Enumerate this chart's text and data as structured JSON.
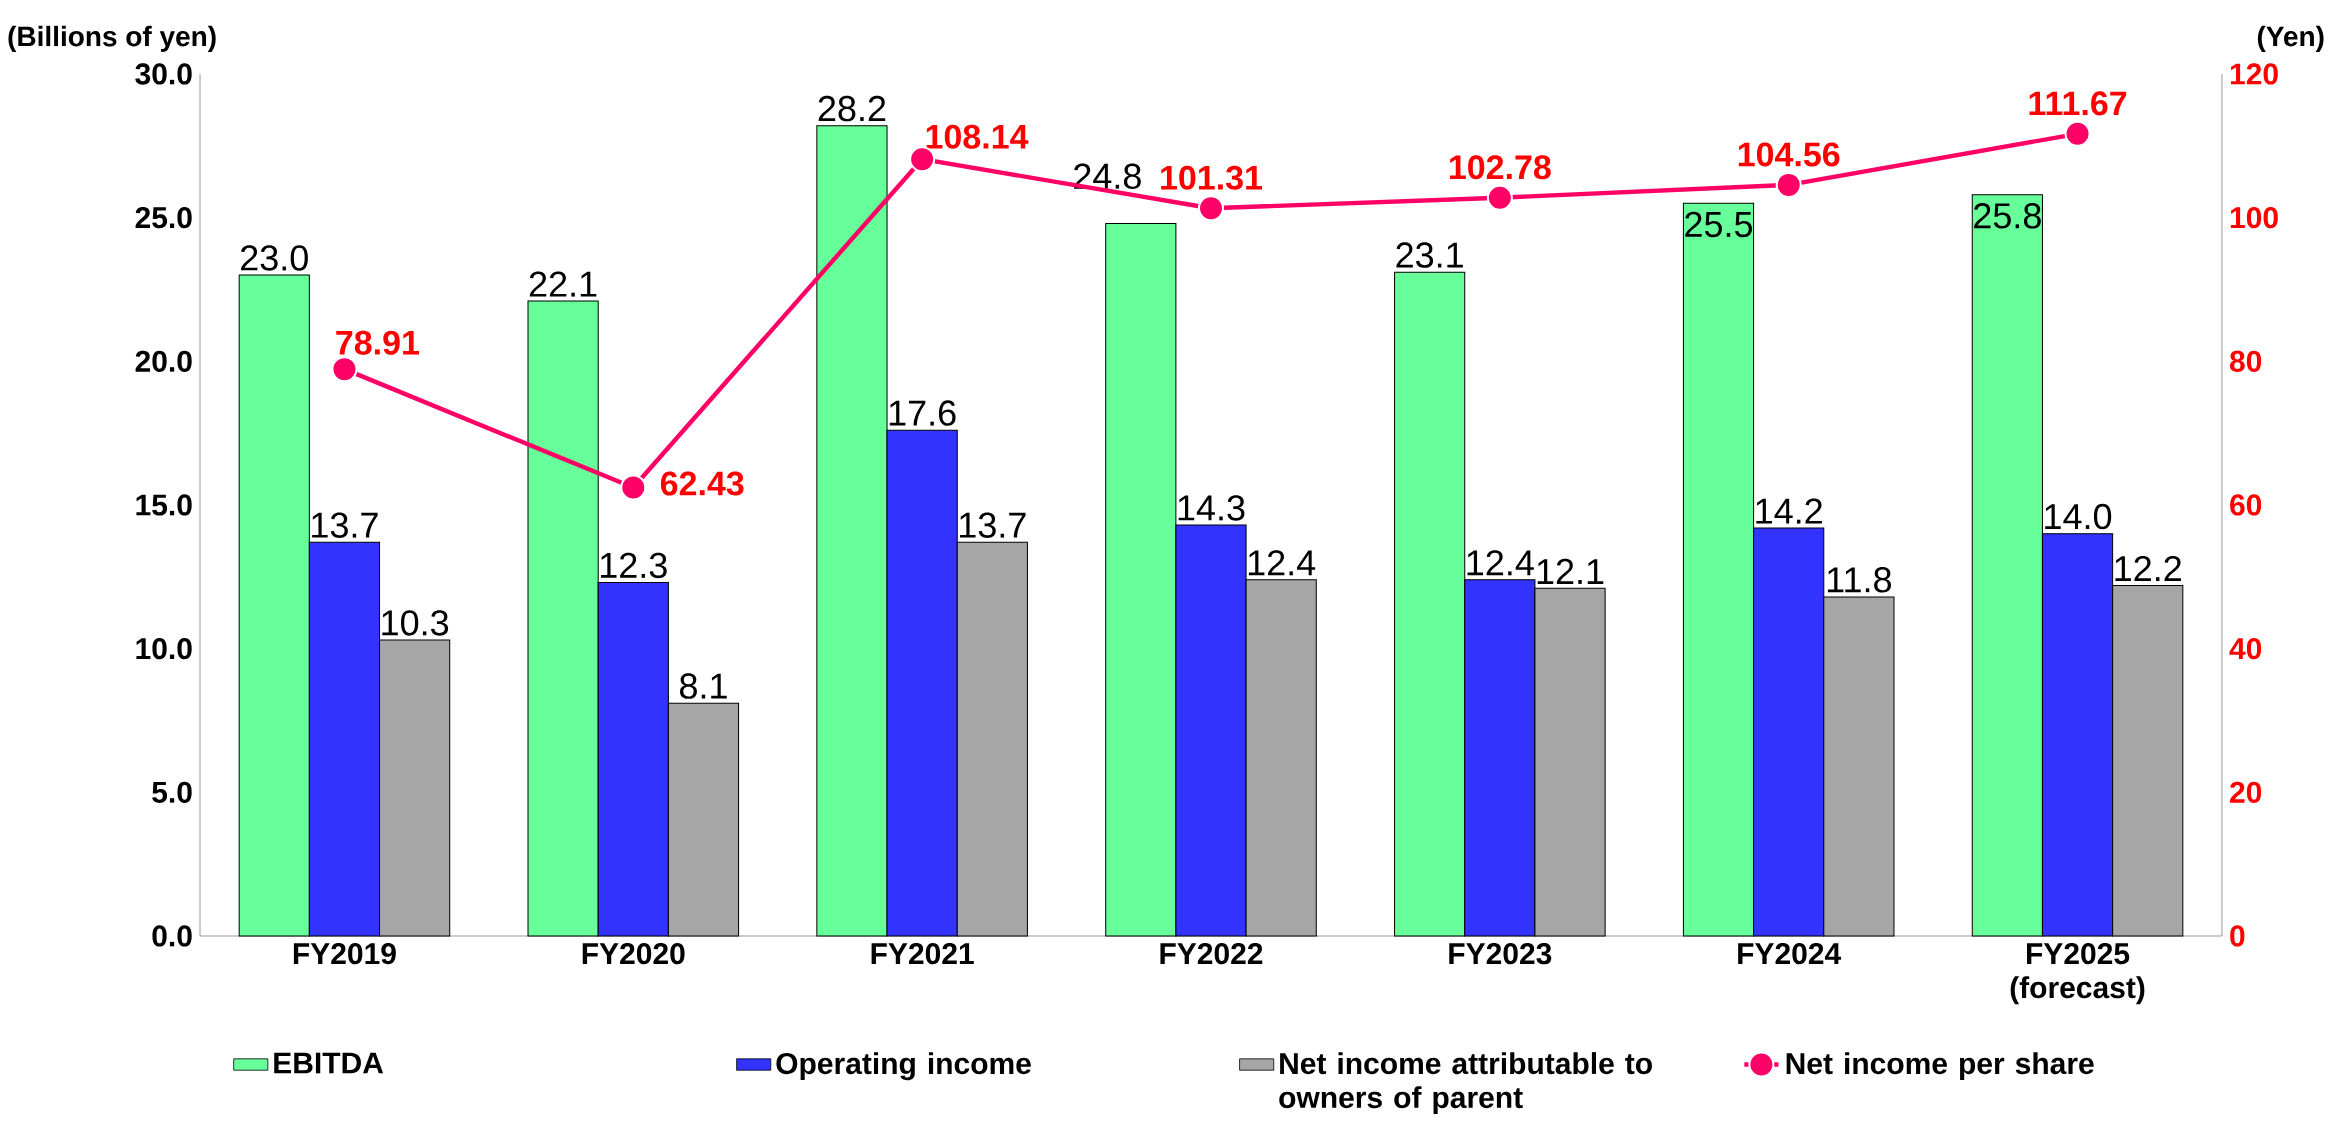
{
  "chart_data": {
    "type": "bar",
    "ylabel": "(Billions of yen)",
    "y2label": "(Yen)",
    "categories": [
      "FY2019",
      "FY2020",
      "FY2021",
      "FY2022",
      "FY2023",
      "FY2024",
      "FY2025 (forecast)"
    ],
    "series": [
      {
        "name": "EBITDA",
        "color": "#66ff99",
        "values": [
          23.0,
          22.1,
          28.2,
          24.8,
          23.1,
          25.5,
          25.8
        ],
        "value_labels": [
          "23.0",
          "22.1",
          "28.2",
          "24.8",
          "23.1",
          "25.5",
          "25.8"
        ]
      },
      {
        "name": "Operating income",
        "color": "#3333ff",
        "values": [
          13.7,
          12.3,
          17.6,
          14.3,
          12.4,
          14.2,
          14.0
        ],
        "value_labels": [
          "13.7",
          "12.3",
          "17.6",
          "14.3",
          "12.4",
          "14.2",
          "14.0"
        ]
      },
      {
        "name": "Net income attributable to owners of parent",
        "color": "#a6a6a6",
        "values": [
          10.3,
          8.1,
          13.7,
          12.4,
          12.1,
          11.8,
          12.2
        ],
        "value_labels": [
          "10.3",
          "8.1",
          "13.7",
          "12.4",
          "12.1",
          "11.8",
          "12.2"
        ]
      },
      {
        "name": "Net income per share",
        "type": "line",
        "axis": "y2",
        "marker": "circle",
        "color": "#ff0066",
        "values": [
          78.91,
          62.43,
          108.14,
          101.31,
          102.78,
          104.56,
          111.67
        ],
        "value_labels": [
          "78.91",
          "62.43",
          "108.14",
          "101.31",
          "102.78",
          "104.56",
          "111.67"
        ]
      }
    ],
    "ylim": [
      0,
      30
    ],
    "yticks": [
      {
        "value": 0,
        "label": "0.0"
      },
      {
        "value": 5,
        "label": "5.0"
      },
      {
        "value": 10,
        "label": "10.0"
      },
      {
        "value": 15,
        "label": "15.0"
      },
      {
        "value": 20,
        "label": "20.0"
      },
      {
        "value": 25,
        "label": "25.0"
      },
      {
        "value": 30,
        "label": "30.0"
      }
    ],
    "y2lim": [
      0,
      120
    ],
    "y2ticks": [
      0,
      20,
      40,
      60,
      80,
      100,
      120
    ],
    "legend": "bottom"
  }
}
